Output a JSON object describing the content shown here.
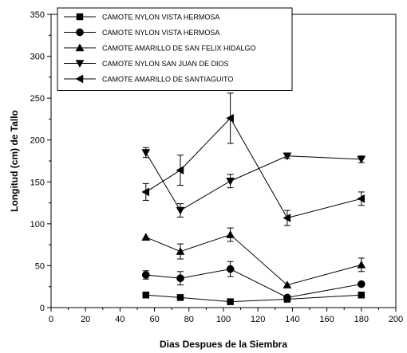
{
  "chart_data": {
    "type": "line",
    "xlabel": "Dias Despues de la Siembra",
    "ylabel": "Longitud (cm) de Tallo",
    "xlim": [
      0,
      200
    ],
    "ylim": [
      0,
      350
    ],
    "xticks": [
      0,
      20,
      40,
      60,
      80,
      100,
      120,
      140,
      160,
      180,
      200
    ],
    "yticks": [
      0,
      50,
      100,
      150,
      200,
      250,
      300,
      350
    ],
    "grid": false,
    "legend_position": "top-left",
    "series": [
      {
        "name": "CAMOTE NYLON VISTA HERMOSA",
        "marker": "square",
        "x": [
          55,
          75,
          104,
          137,
          180
        ],
        "y": [
          15,
          12,
          7,
          10,
          15
        ],
        "err": [
          0,
          0,
          0,
          0,
          0
        ]
      },
      {
        "name": "CAMOTE NYLON VISTA HERMOSA",
        "marker": "circle",
        "x": [
          55,
          75,
          104,
          137,
          180
        ],
        "y": [
          39,
          35,
          46,
          12,
          28
        ],
        "err": [
          5,
          8,
          9,
          0,
          0
        ]
      },
      {
        "name": "CAMOTE AMARILLO DE SAN FELIX HIDALGO",
        "marker": "triangle-up",
        "x": [
          55,
          75,
          104,
          137,
          180
        ],
        "y": [
          84,
          67,
          87,
          27,
          51
        ],
        "err": [
          0,
          9,
          8,
          0,
          8
        ]
      },
      {
        "name": "CAMOTE NYLON SAN JUAN DE DIOS",
        "marker": "triangle-down",
        "x": [
          55,
          75,
          104,
          137,
          180
        ],
        "y": [
          185,
          116,
          151,
          181,
          177
        ],
        "err": [
          6,
          8,
          8,
          3,
          4
        ]
      },
      {
        "name": "CAMOTE AMARILLO DE SANTIAGUITO",
        "marker": "triangle-left",
        "x": [
          55,
          75,
          104,
          137,
          180
        ],
        "y": [
          138,
          164,
          226,
          107,
          130
        ],
        "err": [
          10,
          18,
          30,
          9,
          8
        ]
      }
    ]
  }
}
